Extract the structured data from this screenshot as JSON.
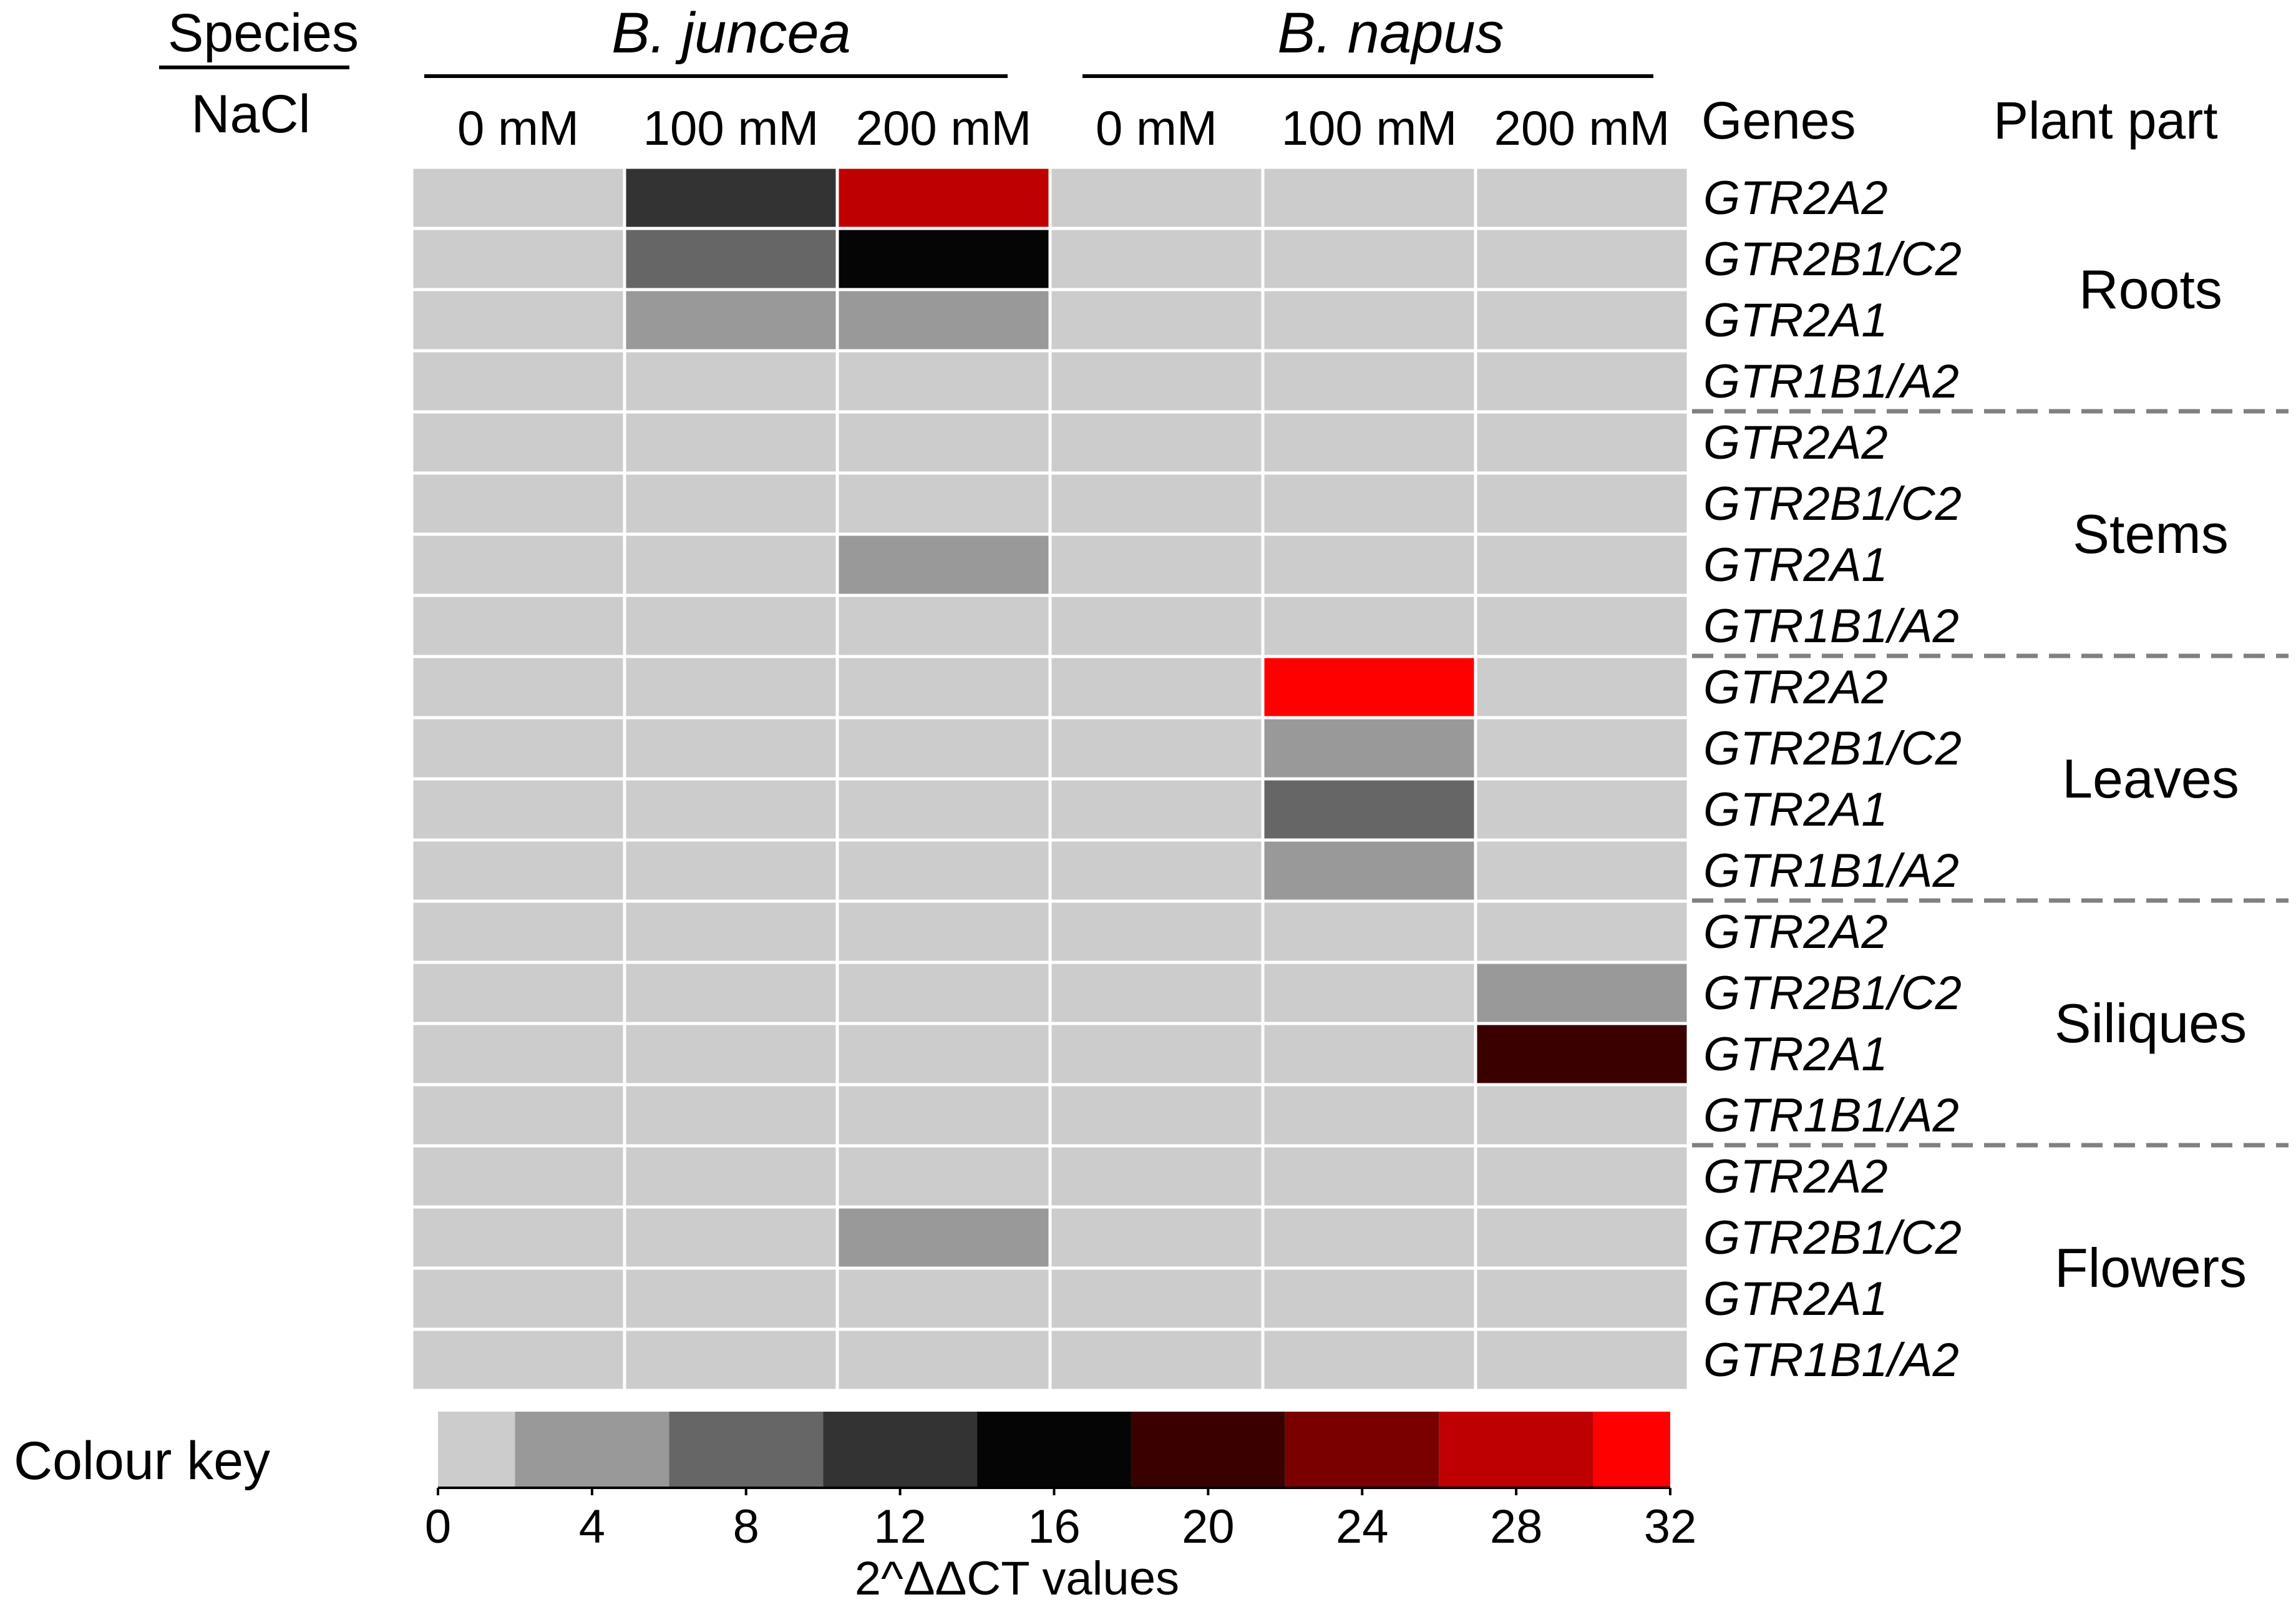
{
  "chart_data": {
    "type": "heatmap",
    "header": {
      "species_label": "Species",
      "nacl_label": "NaCl",
      "genes_label": "Genes",
      "plant_part_label": "Plant part"
    },
    "species": [
      "B. juncea",
      "B. napus"
    ],
    "columns": [
      {
        "species": "B. juncea",
        "treatment": "0 mM"
      },
      {
        "species": "B. juncea",
        "treatment": "100 mM"
      },
      {
        "species": "B. juncea",
        "treatment": "200 mM"
      },
      {
        "species": "B. napus",
        "treatment": "0 mM"
      },
      {
        "species": "B. napus",
        "treatment": "100 mM"
      },
      {
        "species": "B. napus",
        "treatment": "200 mM"
      }
    ],
    "genes": [
      "GTR2A2",
      "GTR2B1/C2",
      "GTR2A1",
      "GTR1B1/A2"
    ],
    "plant_parts": [
      {
        "name": "Roots",
        "values": [
          [
            1,
            11,
            26,
            1,
            1,
            1
          ],
          [
            1,
            7,
            15,
            1,
            1,
            1
          ],
          [
            1,
            4,
            4,
            1,
            1,
            1
          ],
          [
            1,
            1,
            1,
            1,
            1,
            1
          ]
        ]
      },
      {
        "name": "Stems",
        "values": [
          [
            1,
            1,
            1,
            1,
            1,
            1
          ],
          [
            1,
            1,
            1,
            1,
            1,
            1
          ],
          [
            1,
            1,
            4,
            1,
            1,
            1
          ],
          [
            1,
            1,
            1,
            1,
            1,
            1
          ]
        ]
      },
      {
        "name": "Leaves",
        "values": [
          [
            1,
            1,
            1,
            1,
            31,
            1
          ],
          [
            1,
            1,
            1,
            1,
            4,
            1
          ],
          [
            1,
            1,
            1,
            1,
            7,
            1
          ],
          [
            1,
            1,
            1,
            1,
            4,
            1
          ]
        ]
      },
      {
        "name": "Siliques",
        "values": [
          [
            1,
            1,
            1,
            1,
            1,
            1
          ],
          [
            1,
            1,
            1,
            1,
            1,
            4
          ],
          [
            1,
            1,
            1,
            1,
            1,
            19
          ],
          [
            1,
            1,
            1,
            1,
            1,
            1
          ]
        ]
      },
      {
        "name": "Flowers",
        "values": [
          [
            1,
            1,
            1,
            1,
            1,
            1
          ],
          [
            1,
            1,
            4,
            1,
            1,
            1
          ],
          [
            1,
            1,
            1,
            1,
            1,
            1
          ],
          [
            1,
            1,
            1,
            1,
            1,
            1
          ]
        ]
      }
    ],
    "colour_key": {
      "title": "Colour key",
      "xlabel": "2^ΔΔCT values",
      "range": [
        0,
        32
      ],
      "ticks": [
        0,
        4,
        8,
        12,
        16,
        20,
        24,
        28,
        32
      ],
      "bins": [
        {
          "from": 0,
          "to": 2,
          "color": "#cccccc"
        },
        {
          "from": 2,
          "to": 6,
          "color": "#999999"
        },
        {
          "from": 6,
          "to": 10,
          "color": "#666666"
        },
        {
          "from": 10,
          "to": 14,
          "color": "#333333"
        },
        {
          "from": 14,
          "to": 18,
          "color": "#050505"
        },
        {
          "from": 18,
          "to": 22,
          "color": "#3a0000"
        },
        {
          "from": 22,
          "to": 26,
          "color": "#7a0000"
        },
        {
          "from": 26,
          "to": 30,
          "color": "#bf0000"
        },
        {
          "from": 30,
          "to": 32,
          "color": "#ff0000"
        }
      ]
    }
  }
}
